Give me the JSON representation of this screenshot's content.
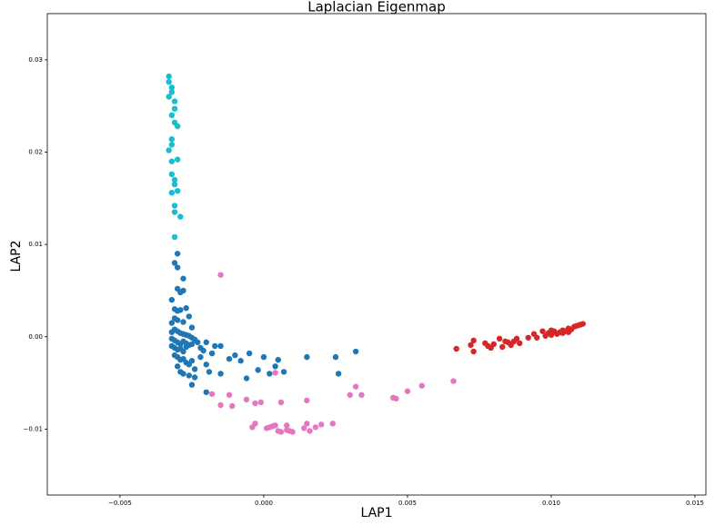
{
  "chart_data": {
    "type": "scatter",
    "title": "Laplacian Eigenmap",
    "x_label": "LAP1",
    "y_label": "LAP2",
    "xlim": [
      -0.00753,
      0.01538
    ],
    "ylim": [
      -0.01714,
      0.035
    ],
    "xticks": [
      {
        "value": -0.005,
        "label": "−0.005"
      },
      {
        "value": 0,
        "label": "0.000"
      },
      {
        "value": 0.005,
        "label": "0.005"
      },
      {
        "value": 0.01,
        "label": "0.010"
      },
      {
        "value": 0.015,
        "label": "0.015"
      }
    ],
    "yticks": [
      {
        "value": -0.01,
        "label": "−0.01"
      },
      {
        "value": 0,
        "label": "0.00"
      },
      0.01,
      0.02,
      0.03
    ],
    "grid": false,
    "series": [
      {
        "color": "#17becf",
        "x": [
          -0.0033,
          -0.0033,
          -0.0032,
          -0.0032,
          -0.0033,
          -0.0031,
          -0.0031,
          -0.0032,
          -0.0031,
          -0.003,
          -0.0032,
          -0.0032,
          -0.0033,
          -0.003,
          -0.0032,
          -0.0032,
          -0.0031,
          -0.0031,
          -0.003,
          -0.0032,
          -0.0031,
          -0.0031,
          -0.0029,
          -0.0031
        ],
        "values": [
          0.0282,
          0.0276,
          0.027,
          0.0265,
          0.026,
          0.0255,
          0.0247,
          0.024,
          0.0232,
          0.0228,
          0.0214,
          0.0208,
          0.0202,
          0.0192,
          0.019,
          0.0176,
          0.017,
          0.0165,
          0.0158,
          0.0156,
          0.0142,
          0.0135,
          0.013,
          0.0108
        ]
      },
      {
        "color": "#1f77b4",
        "x": [
          -0.003,
          -0.0031,
          -0.003,
          -0.0028,
          -0.003,
          -0.0029,
          -0.0028,
          -0.0032,
          -0.0031,
          -0.003,
          -0.0029,
          -0.0027,
          -0.0031,
          -0.0032,
          -0.003,
          -0.0028,
          -0.0026,
          -0.0025,
          -0.0031,
          -0.0032,
          -0.003,
          -0.0029,
          -0.0028,
          -0.0027,
          -0.0026,
          -0.0025,
          -0.0024,
          -0.0032,
          -0.0031,
          -0.003,
          -0.0029,
          -0.0028,
          -0.0027,
          -0.0026,
          -0.0032,
          -0.0031,
          -0.003,
          -0.0029,
          -0.0028,
          -0.0027,
          -0.0025,
          -0.0023,
          -0.0022,
          -0.0021,
          -0.002,
          -0.0018,
          -0.0017,
          -0.0031,
          -0.003,
          -0.0029,
          -0.0028,
          -0.0027,
          -0.0026,
          -0.0025,
          -0.0024,
          -0.0022,
          -0.002,
          -0.0019,
          -0.003,
          -0.0029,
          -0.0028,
          -0.0026,
          -0.0024,
          -0.0015,
          -0.001,
          -0.0005,
          0.0,
          0.0005,
          0.0007,
          0.0015,
          0.0025,
          0.0032,
          0.0026,
          0.0002,
          -0.0006,
          -0.0015,
          -0.002,
          -0.0025,
          -0.0012,
          -0.0008,
          0.0004,
          -0.0002
        ],
        "values": [
          0.009,
          0.008,
          0.0075,
          0.0063,
          0.0052,
          0.0048,
          0.005,
          0.004,
          0.003,
          0.0028,
          0.0029,
          0.0031,
          0.002,
          0.0015,
          0.0018,
          0.0016,
          0.0022,
          0.001,
          0.0008,
          0.0005,
          0.0006,
          0.0004,
          0.0003,
          0.0002,
          0.0001,
          -0.0001,
          -0.0003,
          -0.0002,
          -0.0004,
          -0.0006,
          -0.0008,
          -0.0005,
          -0.0007,
          -0.0009,
          -0.001,
          -0.0012,
          -0.0014,
          -0.0013,
          -0.0016,
          -0.0011,
          -0.0008,
          -0.0006,
          -0.0012,
          -0.0015,
          -0.0006,
          -0.0018,
          -0.001,
          -0.002,
          -0.0022,
          -0.0025,
          -0.0024,
          -0.0028,
          -0.003,
          -0.0026,
          -0.0035,
          -0.0022,
          -0.003,
          -0.0038,
          -0.0032,
          -0.0038,
          -0.004,
          -0.0042,
          -0.0044,
          -0.001,
          -0.002,
          -0.0018,
          -0.0022,
          -0.0025,
          -0.0038,
          -0.0022,
          -0.0022,
          -0.0016,
          -0.004,
          -0.004,
          -0.0045,
          -0.004,
          -0.006,
          -0.0052,
          -0.0024,
          -0.0026,
          -0.0032,
          -0.0036
        ]
      },
      {
        "color": "#e377c2",
        "x": [
          -0.0015,
          -0.0018,
          -0.0015,
          -0.0012,
          -0.0011,
          -0.0006,
          -0.0003,
          -0.0001,
          -0.0004,
          -0.0003,
          0.0001,
          0.0002,
          0.0003,
          0.0004,
          0.0005,
          0.0006,
          0.0008,
          0.0008,
          0.0009,
          0.001,
          0.0014,
          0.0015,
          0.0016,
          0.0018,
          0.002,
          0.0024,
          0.0015,
          0.0004,
          0.0006,
          0.003,
          0.0032,
          0.0034,
          0.0045,
          0.0046,
          0.005,
          0.0055,
          0.0066
        ],
        "values": [
          0.0067,
          -0.0062,
          -0.0074,
          -0.0063,
          -0.0075,
          -0.0068,
          -0.0072,
          -0.0071,
          -0.0098,
          -0.0094,
          -0.0099,
          -0.0098,
          -0.0097,
          -0.0096,
          -0.0102,
          -0.0103,
          -0.0101,
          -0.0096,
          -0.0102,
          -0.0103,
          -0.0099,
          -0.0094,
          -0.0102,
          -0.0098,
          -0.0095,
          -0.0094,
          -0.0069,
          -0.0039,
          -0.0071,
          -0.0063,
          -0.0054,
          -0.0063,
          -0.0066,
          -0.0067,
          -0.0059,
          -0.0053,
          -0.0048
        ]
      },
      {
        "color": "#d62728",
        "x": [
          0.0067,
          0.0072,
          0.0073,
          0.0073,
          0.0077,
          0.0078,
          0.0079,
          0.008,
          0.0082,
          0.0083,
          0.0084,
          0.0085,
          0.0086,
          0.0087,
          0.0088,
          0.0089,
          0.0092,
          0.0094,
          0.0095,
          0.0097,
          0.0098,
          0.0099,
          0.01,
          0.01,
          0.0101,
          0.0102,
          0.0103,
          0.0104,
          0.0105,
          0.0106,
          0.0107,
          0.0108,
          0.0109,
          0.011,
          0.0111,
          0.0106,
          0.0104
        ],
        "values": [
          -0.0013,
          -0.0009,
          -0.0004,
          -0.0016,
          -0.0007,
          -0.001,
          -0.0012,
          -0.0008,
          -0.0002,
          -0.0011,
          -0.0005,
          -0.0006,
          -0.0009,
          -0.0005,
          -0.0002,
          -0.0007,
          -0.0001,
          0.0003,
          -0.0001,
          0.0006,
          0.0001,
          0.0004,
          0.0007,
          0.0002,
          0.0006,
          0.0003,
          0.0005,
          0.0007,
          0.0006,
          0.0009,
          0.0008,
          0.0011,
          0.0012,
          0.0013,
          0.0014,
          0.0005,
          0.0004
        ]
      }
    ]
  }
}
